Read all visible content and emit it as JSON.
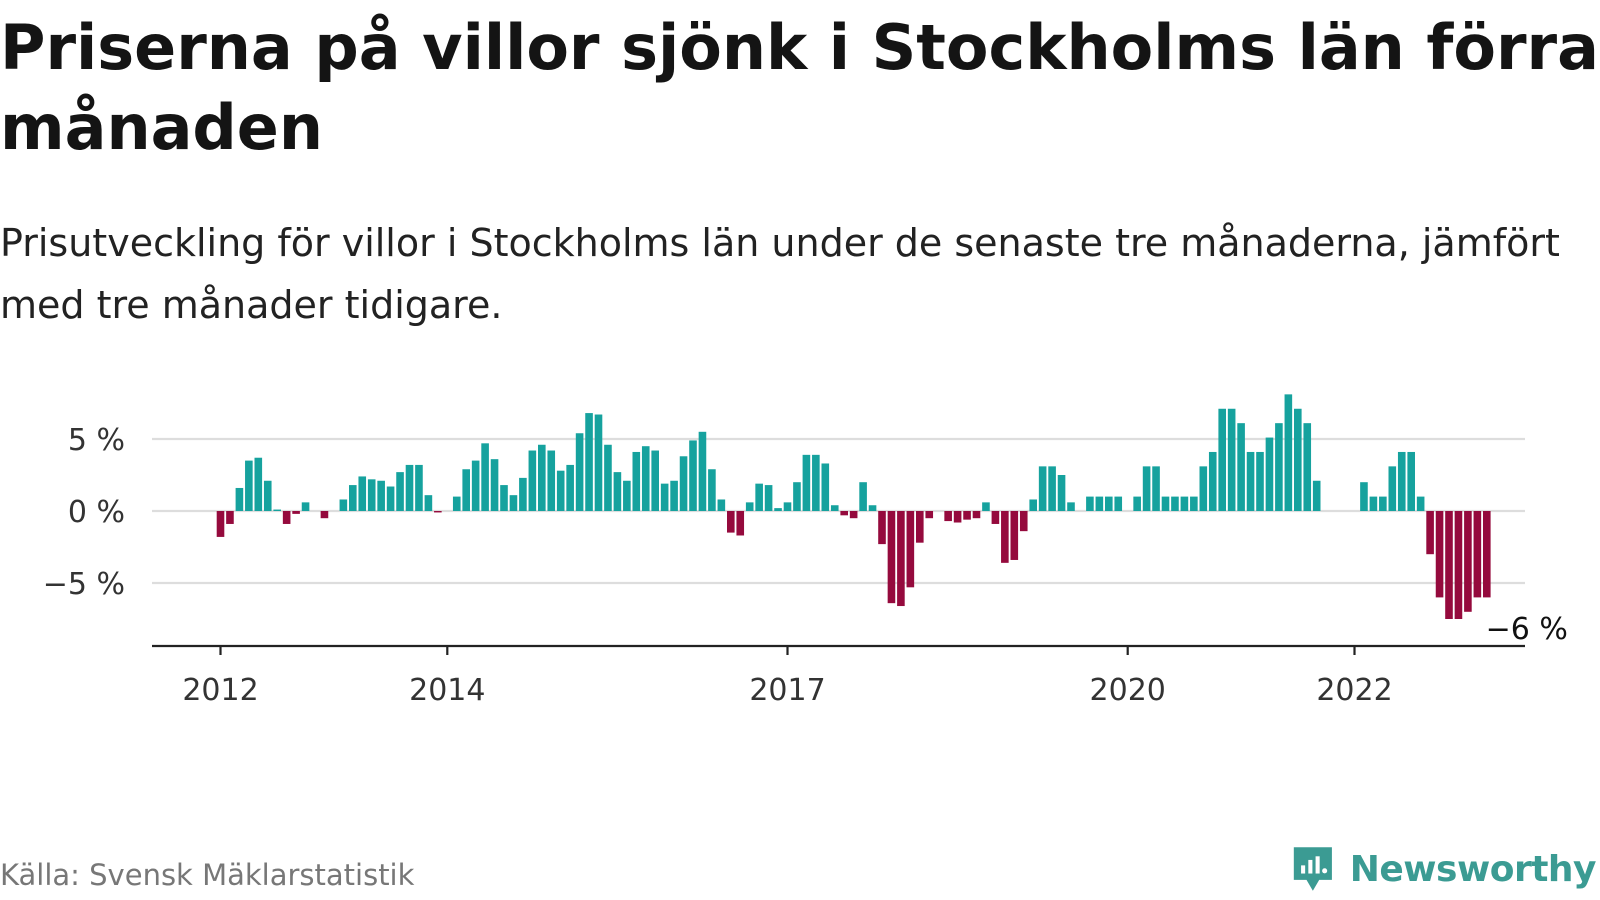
{
  "title": "Priserna på villor sjönk i Stockholms län förra månaden",
  "subtitle": "Prisutveckling för villor i Stockholms län under de senaste tre månaderna, jämfört med tre månader tidigare.",
  "source": "Källa: Svensk Mäklarstatistik",
  "brand": {
    "name": "Newsworthy",
    "color": "#3b9b93",
    "icon": "newsworthy-logo-icon"
  },
  "colors": {
    "positive": "#16a29e",
    "negative": "#950a3d",
    "grid": "#dddddd",
    "axis": "#222222"
  },
  "chart_data": {
    "type": "bar",
    "title": "Priserna på villor sjönk i Stockholms län förra månaden",
    "subtitle": "Prisutveckling för villor i Stockholms län under de senaste tre månaderna, jämfört med tre månader tidigare.",
    "xlabel": "",
    "ylabel": "",
    "ylim": [
      -9,
      9
    ],
    "yticks": [
      5,
      0,
      -5
    ],
    "ytick_labels": [
      "5 %",
      "0 %",
      "−5 %"
    ],
    "xticks": [
      "2012",
      "2014",
      "2017",
      "2020",
      "2022"
    ],
    "grid": true,
    "legend": "none",
    "x_start": "2011-01",
    "x_end": "2023-03",
    "end_label": "−6 %",
    "series": [
      {
        "x": [
          "2012-01",
          "2012-02",
          "2012-03",
          "2012-04",
          "2012-05",
          "2012-06",
          "2012-07",
          "2012-08",
          "2012-09",
          "2012-10",
          "2012-11",
          "2012-12",
          "2013-01",
          "2013-02",
          "2013-03",
          "2013-04",
          "2013-05",
          "2013-06",
          "2013-07",
          "2013-08",
          "2013-09",
          "2013-10",
          "2013-11",
          "2013-12",
          "2014-01",
          "2014-02",
          "2014-03",
          "2014-04",
          "2014-05",
          "2014-06",
          "2014-07",
          "2014-08",
          "2014-09",
          "2014-10",
          "2014-11",
          "2014-12",
          "2015-01",
          "2015-02",
          "2015-03",
          "2015-04",
          "2015-05",
          "2015-06",
          "2015-07",
          "2015-08",
          "2015-09",
          "2015-10",
          "2015-11",
          "2015-12",
          "2016-01",
          "2016-02",
          "2016-03",
          "2016-04",
          "2016-05",
          "2016-06",
          "2016-07",
          "2016-08",
          "2016-09",
          "2016-10",
          "2016-11",
          "2016-12",
          "2017-01",
          "2017-02",
          "2017-03",
          "2017-04",
          "2017-05",
          "2017-06",
          "2017-07",
          "2017-08",
          "2017-09",
          "2017-10",
          "2017-11",
          "2017-12",
          "2018-01",
          "2018-02",
          "2018-03",
          "2018-04",
          "2018-05",
          "2018-06",
          "2018-07",
          "2018-08",
          "2018-09",
          "2018-10",
          "2018-11",
          "2018-12",
          "2019-01",
          "2019-02",
          "2019-03",
          "2019-04",
          "2019-05",
          "2019-06",
          "2019-07",
          "2019-08",
          "2019-09",
          "2019-10",
          "2019-11",
          "2019-12",
          "2020-01",
          "2020-02",
          "2020-03",
          "2020-04",
          "2020-05",
          "2020-06",
          "2020-07",
          "2020-08",
          "2020-09",
          "2020-10",
          "2020-11",
          "2020-12",
          "2021-01",
          "2021-02",
          "2021-03",
          "2021-04",
          "2021-05",
          "2021-06",
          "2021-07",
          "2021-08",
          "2021-09",
          "2021-10",
          "2021-11",
          "2021-12",
          "2022-01",
          "2022-02",
          "2022-03",
          "2022-04",
          "2022-05",
          "2022-06",
          "2022-07",
          "2022-08",
          "2022-09",
          "2022-10",
          "2022-11",
          "2022-12",
          "2023-01",
          "2023-02",
          "2023-03"
        ],
        "values": [
          -1.8,
          -0.9,
          1.6,
          3.5,
          3.7,
          2.1,
          0.1,
          -0.9,
          -0.2,
          0.6,
          null,
          -0.5,
          null,
          0.8,
          1.8,
          2.4,
          2.2,
          2.1,
          1.7,
          2.7,
          3.2,
          3.2,
          1.1,
          -0.1,
          null,
          1.0,
          2.9,
          3.5,
          4.7,
          3.6,
          1.8,
          1.1,
          2.3,
          4.2,
          4.6,
          4.2,
          2.8,
          3.2,
          5.4,
          6.8,
          6.7,
          4.6,
          2.7,
          2.1,
          4.1,
          4.5,
          4.2,
          1.9,
          2.1,
          3.8,
          4.9,
          5.5,
          2.9,
          0.8,
          -1.5,
          -1.7,
          0.6,
          1.9,
          1.8,
          0.2,
          0.6,
          2.0,
          3.9,
          3.9,
          3.3,
          0.4,
          -0.3,
          -0.5,
          2.0,
          0.4,
          -2.3,
          -6.4,
          -6.6,
          -5.3,
          -2.2,
          -0.5,
          null,
          -0.7,
          -0.8,
          -0.6,
          -0.5,
          0.6,
          -0.9,
          -3.6,
          -3.4,
          -1.4,
          0.8,
          3.1,
          3.1,
          2.5,
          0.6,
          null,
          1.0,
          1.0,
          1.0,
          1.0,
          null,
          1.0,
          3.1,
          3.1,
          1.0,
          1.0,
          1.0,
          1.0,
          3.1,
          4.1,
          7.1,
          7.1,
          6.1,
          4.1,
          4.1,
          5.1,
          6.1,
          8.1,
          7.1,
          6.1,
          2.1,
          null,
          null,
          null,
          null,
          2.0,
          1.0,
          1.0,
          3.1,
          4.1,
          4.1,
          1.0,
          -3.0,
          -6.0,
          -7.5,
          -7.5,
          -7.0,
          -6.0,
          -6.0
        ]
      }
    ]
  }
}
